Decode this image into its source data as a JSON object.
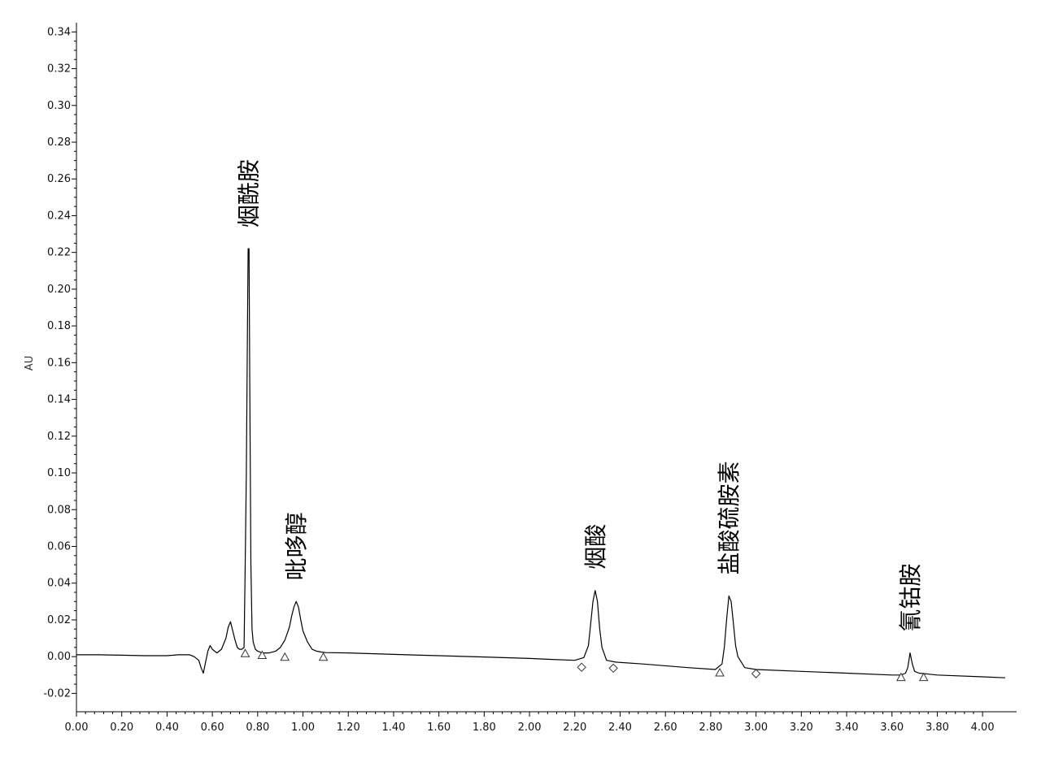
{
  "chart_data": {
    "type": "line",
    "title": "",
    "xlabel": "",
    "ylabel": "AU",
    "xlim": [
      0.0,
      4.1
    ],
    "ylim": [
      -0.03,
      0.345
    ],
    "x_ticks": [
      "0.00",
      "0.20",
      "0.40",
      "0.60",
      "0.80",
      "1.00",
      "1.20",
      "1.40",
      "1.60",
      "1.80",
      "2.00",
      "2.20",
      "2.40",
      "2.60",
      "2.80",
      "3.00",
      "3.20",
      "3.40",
      "3.60",
      "3.80",
      "4.00"
    ],
    "y_ticks": [
      "-0.02",
      "0.00",
      "0.02",
      "0.04",
      "0.06",
      "0.08",
      "0.10",
      "0.12",
      "0.14",
      "0.16",
      "0.18",
      "0.20",
      "0.22",
      "0.24",
      "0.26",
      "0.28",
      "0.30",
      "0.32",
      "0.34"
    ],
    "grid": false,
    "line_color": "#000000",
    "series": [
      {
        "x": [
          0.0,
          0.1,
          0.2,
          0.3,
          0.35,
          0.4,
          0.45,
          0.48,
          0.5,
          0.52,
          0.54,
          0.55,
          0.56,
          0.57,
          0.58,
          0.59,
          0.6,
          0.62,
          0.64,
          0.66,
          0.67,
          0.68,
          0.69,
          0.7,
          0.71,
          0.72,
          0.73,
          0.74,
          0.745,
          0.75,
          0.755,
          0.758,
          0.762,
          0.765,
          0.77,
          0.775,
          0.78,
          0.79,
          0.8,
          0.82,
          0.85,
          0.88,
          0.9,
          0.92,
          0.94,
          0.95,
          0.96,
          0.97,
          0.98,
          0.99,
          1.0,
          1.02,
          1.04,
          1.06,
          1.08,
          1.1,
          1.2,
          1.4,
          1.6,
          1.8,
          2.0,
          2.1,
          2.2,
          2.24,
          2.26,
          2.27,
          2.28,
          2.29,
          2.3,
          2.31,
          2.32,
          2.34,
          2.38,
          2.5,
          2.7,
          2.82,
          2.85,
          2.86,
          2.87,
          2.88,
          2.89,
          2.9,
          2.91,
          2.92,
          2.95,
          3.0,
          3.2,
          3.4,
          3.6,
          3.64,
          3.66,
          3.67,
          3.68,
          3.69,
          3.7,
          3.72,
          3.8,
          4.0,
          4.1
        ],
        "y": [
          0.001,
          0.001,
          0.0008,
          0.0005,
          0.0005,
          0.0005,
          0.001,
          0.001,
          0.001,
          0.0,
          -0.002,
          -0.006,
          -0.009,
          -0.003,
          0.003,
          0.006,
          0.004,
          0.002,
          0.004,
          0.01,
          0.016,
          0.019,
          0.014,
          0.009,
          0.005,
          0.004,
          0.004,
          0.005,
          0.05,
          0.1,
          0.18,
          0.222,
          0.222,
          0.15,
          0.05,
          0.015,
          0.008,
          0.004,
          0.003,
          0.002,
          0.002,
          0.003,
          0.005,
          0.009,
          0.016,
          0.022,
          0.027,
          0.03,
          0.027,
          0.02,
          0.014,
          0.008,
          0.004,
          0.003,
          0.0025,
          0.0022,
          0.002,
          0.0012,
          0.0005,
          -0.0002,
          -0.001,
          -0.0015,
          -0.002,
          -0.0005,
          0.006,
          0.018,
          0.03,
          0.036,
          0.03,
          0.015,
          0.005,
          -0.002,
          -0.003,
          -0.004,
          -0.006,
          -0.007,
          -0.004,
          0.005,
          0.02,
          0.033,
          0.03,
          0.018,
          0.006,
          0.0,
          -0.006,
          -0.007,
          -0.008,
          -0.009,
          -0.01,
          -0.01,
          -0.009,
          -0.006,
          0.002,
          -0.004,
          -0.008,
          -0.009,
          -0.01,
          -0.011,
          -0.0115
        ]
      }
    ],
    "peaks": [
      {
        "name": "烟酰胺",
        "x": 0.76,
        "y": 0.222
      },
      {
        "name": "吡哆醇",
        "x": 0.97,
        "y": 0.03
      },
      {
        "name": "烟酸",
        "x": 2.29,
        "y": 0.036
      },
      {
        "name": "盐酸硫胺素",
        "x": 2.88,
        "y": 0.033
      },
      {
        "name": "氰钴胺",
        "x": 3.68,
        "y": 0.002
      }
    ],
    "integration_markers": [
      {
        "shape": "triangle",
        "x": 0.745,
        "y": 0.0035
      },
      {
        "shape": "triangle",
        "x": 0.82,
        "y": 0.0025
      },
      {
        "shape": "triangle",
        "x": 0.92,
        "y": 0.0015
      },
      {
        "shape": "triangle",
        "x": 1.09,
        "y": 0.0015
      },
      {
        "shape": "diamond",
        "x": 2.23,
        "y": -0.004
      },
      {
        "shape": "diamond",
        "x": 2.37,
        "y": -0.0045
      },
      {
        "shape": "triangle",
        "x": 2.84,
        "y": -0.007
      },
      {
        "shape": "diamond",
        "x": 3.0,
        "y": -0.0075
      },
      {
        "shape": "triangle",
        "x": 3.64,
        "y": -0.0095
      },
      {
        "shape": "triangle",
        "x": 3.74,
        "y": -0.0095
      }
    ]
  }
}
